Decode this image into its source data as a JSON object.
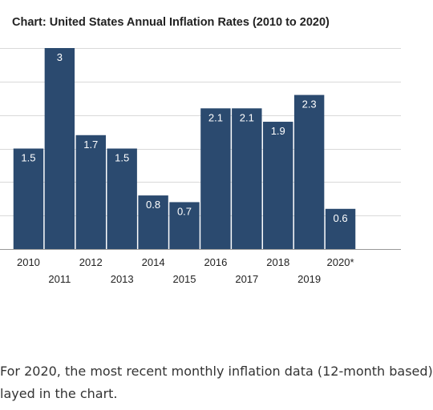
{
  "chart_data": {
    "type": "bar",
    "title": "Chart: United States Annual Inflation Rates (2010 to 2020)",
    "categories": [
      "2010",
      "2011",
      "2012",
      "2013",
      "2014",
      "2015",
      "2016",
      "2017",
      "2018",
      "2019",
      "2020*"
    ],
    "values": [
      1.5,
      3,
      1.7,
      1.5,
      0.8,
      0.7,
      2.1,
      2.1,
      1.9,
      2.3,
      0.6
    ],
    "data_labels": [
      "1.5",
      "3",
      "1.7",
      "1.5",
      "0.8",
      "0.7",
      "2.1",
      "2.1",
      "1.9",
      "2.3",
      "0.6"
    ],
    "ylim": [
      0,
      3
    ],
    "grid": true,
    "bar_color": "#2b4a6f",
    "label_color": "#ffffff",
    "grid_color": "#d9d9d9"
  },
  "note": {
    "line1": "For 2020, the most recent monthly inflation data (12-month based)",
    "line2": "layed in the chart."
  }
}
